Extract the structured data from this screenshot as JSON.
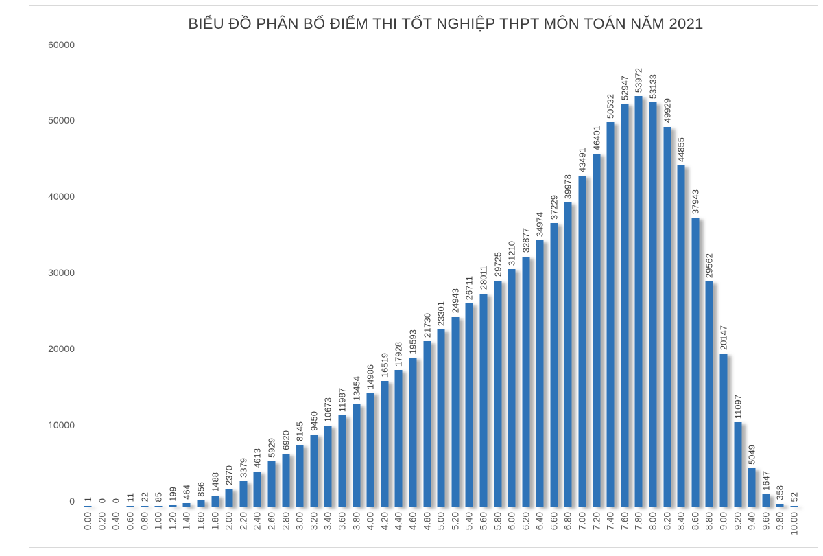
{
  "chart_data": {
    "type": "bar",
    "title": "BIỂU ĐỒ PHÂN BỐ ĐIỂM THI TỐT NGHIỆP THPT MÔN TOÁN NĂM 2021",
    "xlabel": "",
    "ylabel": "",
    "ylim": [
      0,
      60000
    ],
    "yticks": [
      0,
      10000,
      20000,
      30000,
      40000,
      50000,
      60000
    ],
    "grid": false,
    "legend_position": "none",
    "bar_color": "#2e73b8",
    "value_label_color": "#404040",
    "tick_label_color": "#595959",
    "axis_line_color": "#d6d6d6",
    "categories": [
      "0.00",
      "0.20",
      "0.40",
      "0.60",
      "0.80",
      "1.00",
      "1.20",
      "1.40",
      "1.60",
      "1.80",
      "2.00",
      "2.20",
      "2.40",
      "2.60",
      "2.80",
      "3.00",
      "3.20",
      "3.40",
      "3.60",
      "3.80",
      "4.00",
      "4.20",
      "4.40",
      "4.60",
      "4.80",
      "5.00",
      "5.20",
      "5.40",
      "5.60",
      "5.80",
      "6.00",
      "6.20",
      "6.40",
      "6.60",
      "6.80",
      "7.00",
      "7.20",
      "7.40",
      "7.60",
      "7.80",
      "8.00",
      "8.20",
      "8.40",
      "8.60",
      "8.80",
      "9.00",
      "9.20",
      "9.40",
      "9.60",
      "9.80",
      "10.00"
    ],
    "values": [
      1,
      0,
      0,
      11,
      22,
      85,
      199,
      464,
      856,
      1488,
      2370,
      3379,
      4613,
      5929,
      6920,
      8145,
      9450,
      10673,
      11987,
      13454,
      14986,
      16519,
      17928,
      19593,
      21730,
      23301,
      24943,
      26711,
      28011,
      29725,
      31210,
      32877,
      34974,
      37229,
      39978,
      43491,
      46401,
      50532,
      52947,
      53972,
      53133,
      49929,
      44855,
      37943,
      29562,
      20147,
      11097,
      5049,
      1647,
      358,
      52
    ]
  }
}
